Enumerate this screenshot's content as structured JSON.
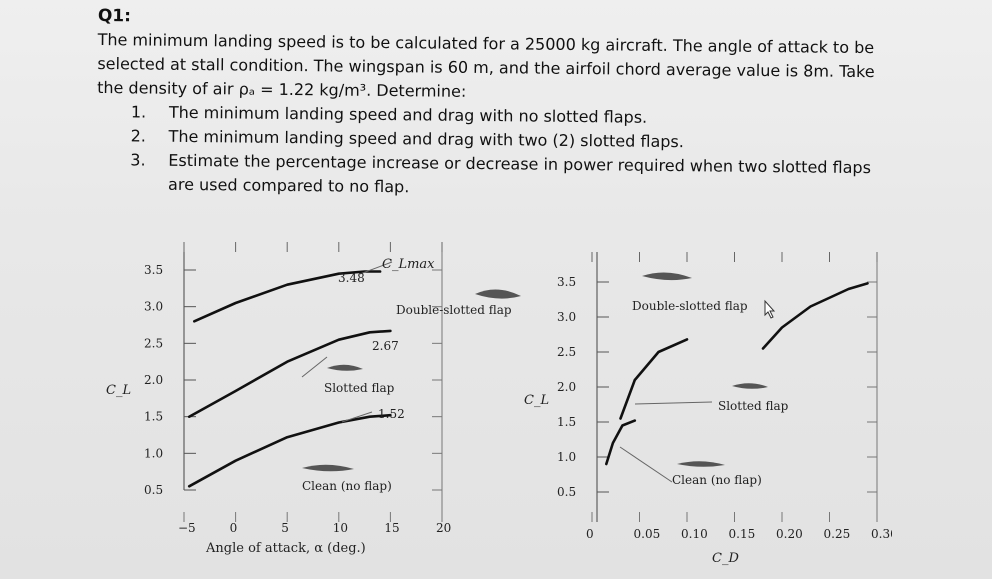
{
  "question": {
    "title": "Q1:",
    "paragraph_lines": [
      "The minimum landing speed is to be calculated for a 25000 kg aircraft. The angle of attack to be",
      "selected at stall condition. The wingspan is 60 m, and the airfoil chord average value is 8m. Take",
      "the density of air ρₐ = 1.22 kg/m³. Determine:"
    ],
    "items": [
      {
        "num": "1.",
        "lines": [
          "The minimum landing speed and drag with no slotted flaps."
        ]
      },
      {
        "num": "2.",
        "lines": [
          "The minimum landing speed and drag with two (2) slotted flaps."
        ]
      },
      {
        "num": "3.",
        "lines": [
          "Estimate the percentage increase or decrease in power required when two slotted flaps",
          "are used compared to no flap."
        ]
      }
    ]
  },
  "chart_data": [
    {
      "type": "line",
      "xlabel": "Angle of attack, α (deg.)",
      "ylabel": "C_L",
      "xticks": [
        "−5",
        "0",
        "5",
        "10",
        "15",
        "20"
      ],
      "yticks": [
        "0.5",
        "1.0",
        "1.5",
        "2.0",
        "2.5",
        "3.0",
        "3.5"
      ],
      "xlim": [
        -5,
        20
      ],
      "ylim": [
        0.5,
        3.5
      ],
      "grid": true,
      "series": [
        {
          "name": "Clean (no flap)",
          "x": [
            -4.5,
            0,
            5,
            10,
            13,
            15
          ],
          "y": [
            0.55,
            0.9,
            1.22,
            1.42,
            1.5,
            1.52
          ]
        },
        {
          "name": "Slotted flap",
          "x": [
            -4.5,
            0,
            5,
            10,
            13,
            15
          ],
          "y": [
            1.5,
            1.85,
            2.25,
            2.55,
            2.65,
            2.67
          ]
        },
        {
          "name": "Double-slotted flap",
          "x": [
            -4,
            0,
            5,
            10,
            12.5,
            14
          ],
          "y": [
            2.8,
            3.05,
            3.3,
            3.45,
            3.48,
            3.48
          ]
        }
      ],
      "annotations": [
        "C_Lmax",
        "3.48",
        "2.67",
        "1.52",
        "Double-slotted flap",
        "Slotted flap",
        "Clean (no flap)"
      ]
    },
    {
      "type": "line",
      "xlabel": "C_D",
      "ylabel": "C_L",
      "xticks": [
        "0",
        "0.05",
        "0.10",
        "0.15",
        "0.20",
        "0.25",
        "0.30"
      ],
      "yticks": [
        "0.5",
        "1.0",
        "1.5",
        "2.0",
        "2.5",
        "3.0",
        "3.5"
      ],
      "xlim": [
        0,
        0.3
      ],
      "ylim": [
        0.5,
        3.5
      ],
      "grid": true,
      "series": [
        {
          "name": "Clean (no flap)",
          "x": [
            0.015,
            0.022,
            0.032,
            0.045
          ],
          "y": [
            0.9,
            1.2,
            1.45,
            1.52
          ]
        },
        {
          "name": "Slotted flap",
          "x": [
            0.03,
            0.045,
            0.07,
            0.1
          ],
          "y": [
            1.55,
            2.1,
            2.5,
            2.68
          ]
        },
        {
          "name": "Double-slotted flap",
          "x": [
            0.18,
            0.2,
            0.23,
            0.27,
            0.29
          ],
          "y": [
            2.55,
            2.85,
            3.15,
            3.4,
            3.48
          ]
        }
      ],
      "annotations": [
        "Double-slotted flap",
        "Slotted flap",
        "Clean (no flap)"
      ]
    }
  ]
}
